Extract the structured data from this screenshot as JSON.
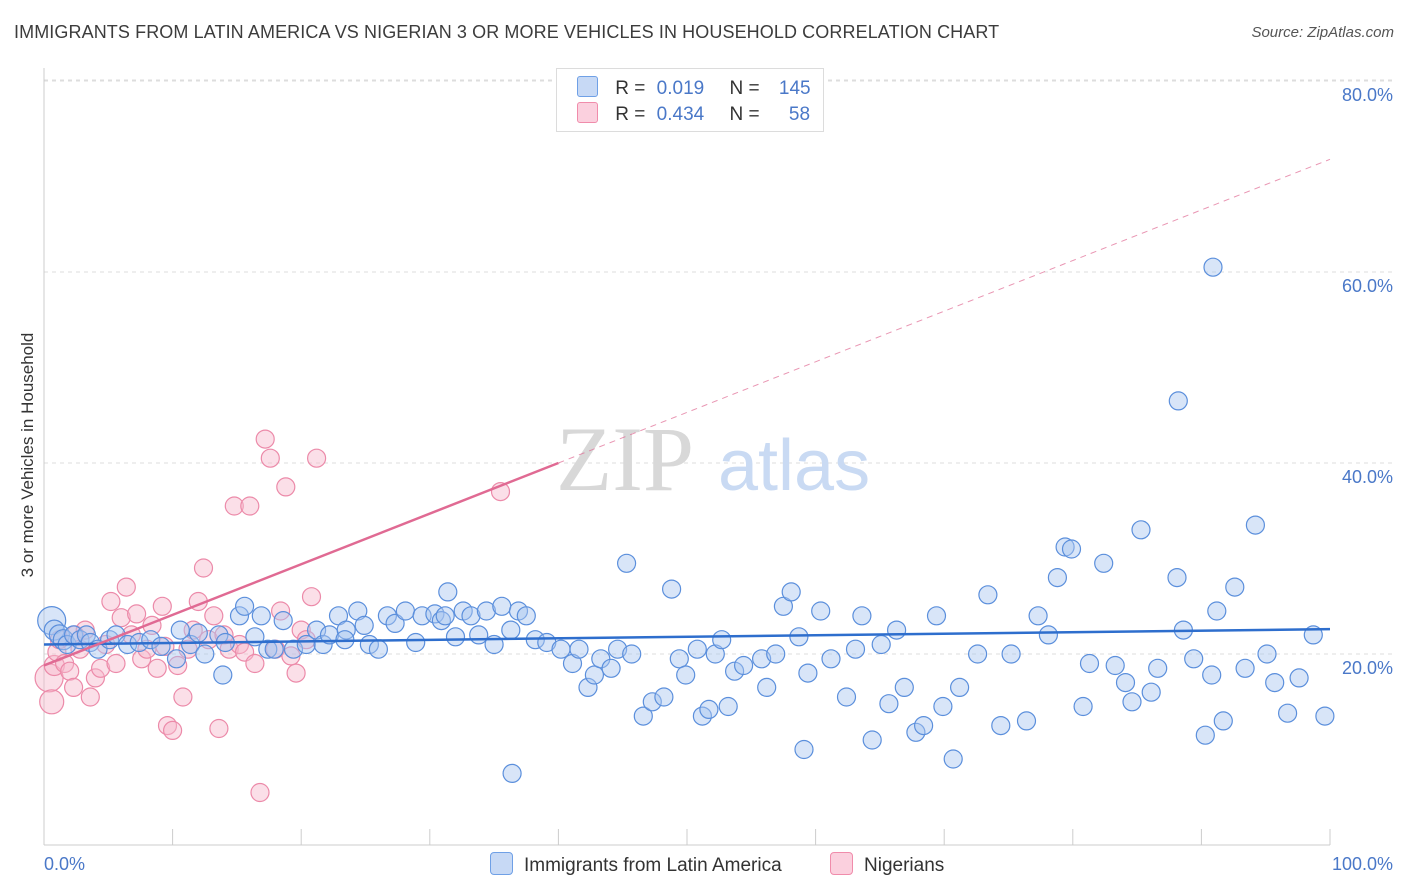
{
  "title": "IMMIGRANTS FROM LATIN AMERICA VS NIGERIAN 3 OR MORE VEHICLES IN HOUSEHOLD CORRELATION CHART",
  "source": "Source: ZipAtlas.com",
  "watermark": {
    "zip": "ZIP",
    "atlas": "atlas"
  },
  "legend": {
    "rows": [
      {
        "r_label": "R =",
        "r_value": "0.019",
        "n_label": "N =",
        "n_value": "145",
        "color": "#6fa0e6"
      },
      {
        "r_label": "R =",
        "r_value": "0.434",
        "n_label": "N =",
        "n_value": "58",
        "color": "#f08cab"
      }
    ]
  },
  "bottom_legend": {
    "series1": "Immigrants from Latin America",
    "series2": "Nigerians"
  },
  "colors": {
    "blue_fill": "#a9c6f0",
    "blue_stroke": "#5b8fdc",
    "blue_line": "#2e6ecd",
    "pink_fill": "#f6b8cc",
    "pink_stroke": "#ec8aa9",
    "pink_line": "#e06a93",
    "axis_label": "#4a78c8",
    "grid": "#dddddd"
  },
  "chart_data": {
    "type": "scatter",
    "title": "IMMIGRANTS FROM LATIN AMERICA VS NIGERIAN 3 OR MORE VEHICLES IN HOUSEHOLD CORRELATION CHART",
    "xlabel": "",
    "ylabel": "3 or more Vehicles in Household",
    "xlim": [
      0,
      100
    ],
    "ylim": [
      0,
      82
    ],
    "x_tick_labels": [
      "0.0%",
      "100.0%"
    ],
    "y_ticks": [
      20,
      40,
      60,
      80
    ],
    "y_tick_labels": [
      "20.0%",
      "40.0%",
      "60.0%",
      "80.0%"
    ],
    "series": [
      {
        "name": "Immigrants from Latin America",
        "R": 0.019,
        "N": 145,
        "trend": {
          "x": [
            0,
            100
          ],
          "y": [
            21.0,
            22.6
          ],
          "style": "solid"
        },
        "points": [
          [
            0.6,
            23.5,
            14
          ],
          [
            0.8,
            22.5,
            10
          ],
          [
            1.2,
            22,
            10
          ],
          [
            1.5,
            21.5,
            10
          ],
          [
            1.8,
            21,
            9
          ],
          [
            2.3,
            22,
            9
          ],
          [
            2.8,
            21.5,
            9
          ],
          [
            3.3,
            22,
            9
          ],
          [
            3.6,
            21.2,
            9
          ],
          [
            4.2,
            20.5,
            9
          ],
          [
            5.1,
            21.5,
            9
          ],
          [
            5.6,
            22,
            9
          ],
          [
            6.5,
            21,
            9
          ],
          [
            7.4,
            21.2,
            9
          ],
          [
            8.3,
            21.5,
            9
          ],
          [
            9.1,
            20.8,
            9
          ],
          [
            10.3,
            19.5,
            9
          ],
          [
            10.6,
            22.5,
            9
          ],
          [
            11.4,
            21,
            9
          ],
          [
            12,
            22.2,
            9
          ],
          [
            12.5,
            20,
            9
          ],
          [
            13.6,
            22,
            9
          ],
          [
            14.1,
            21.2,
            9
          ],
          [
            15.2,
            24,
            9
          ],
          [
            15.6,
            25,
            9
          ],
          [
            16.4,
            21.8,
            9
          ],
          [
            16.9,
            24,
            9
          ],
          [
            17.4,
            20.5,
            9
          ],
          [
            17.9,
            20.5,
            9
          ],
          [
            18.6,
            23.5,
            9
          ],
          [
            19.4,
            20.5,
            9
          ],
          [
            20.4,
            21,
            9
          ],
          [
            21.2,
            22.5,
            9
          ],
          [
            21.7,
            21,
            9
          ],
          [
            22.2,
            22,
            9
          ],
          [
            22.9,
            24,
            9
          ],
          [
            23.5,
            22.5,
            9
          ],
          [
            24.4,
            24.5,
            9
          ],
          [
            24.9,
            23,
            9
          ],
          [
            25.3,
            21,
            9
          ],
          [
            26,
            20.5,
            9
          ],
          [
            26.7,
            24,
            9
          ],
          [
            27.3,
            23.2,
            9
          ],
          [
            28.1,
            24.5,
            9
          ],
          [
            28.9,
            21.2,
            9
          ],
          [
            29.4,
            24,
            9
          ],
          [
            30.4,
            24.2,
            9
          ],
          [
            30.9,
            23.5,
            9
          ],
          [
            31.4,
            26.5,
            9
          ],
          [
            32,
            21.8,
            9
          ],
          [
            32.6,
            24.5,
            9
          ],
          [
            33.2,
            24,
            9
          ],
          [
            33.8,
            22,
            9
          ],
          [
            34.4,
            24.5,
            9
          ],
          [
            35,
            21,
            9
          ],
          [
            35.6,
            25,
            9
          ],
          [
            36.3,
            22.5,
            9
          ],
          [
            36.9,
            24.5,
            9
          ],
          [
            37.5,
            24,
            9
          ],
          [
            38.2,
            21.5,
            9
          ],
          [
            39.1,
            21.2,
            9
          ],
          [
            40.2,
            20.5,
            9
          ],
          [
            41.1,
            19,
            9
          ],
          [
            41.6,
            20.5,
            9
          ],
          [
            42.3,
            16.5,
            9
          ],
          [
            42.8,
            17.8,
            9
          ],
          [
            43.3,
            19.5,
            9
          ],
          [
            44.1,
            18.5,
            9
          ],
          [
            44.6,
            20.5,
            9
          ],
          [
            45.3,
            29.5,
            9
          ],
          [
            45.7,
            20,
            9
          ],
          [
            46.6,
            13.5,
            9
          ],
          [
            47.3,
            15,
            9
          ],
          [
            48.2,
            15.5,
            9
          ],
          [
            48.8,
            26.8,
            9
          ],
          [
            49.4,
            19.5,
            9
          ],
          [
            49.9,
            17.8,
            9
          ],
          [
            50.8,
            20.5,
            9
          ],
          [
            51.2,
            13.5,
            9
          ],
          [
            51.7,
            14.2,
            9
          ],
          [
            52.2,
            20,
            9
          ],
          [
            52.7,
            21.5,
            9
          ],
          [
            53.2,
            14.5,
            9
          ],
          [
            53.7,
            18.2,
            9
          ],
          [
            54.4,
            18.8,
            9
          ],
          [
            55.8,
            19.5,
            9
          ],
          [
            56.2,
            16.5,
            9
          ],
          [
            56.9,
            20,
            9
          ],
          [
            57.5,
            25,
            9
          ],
          [
            58.1,
            26.5,
            9
          ],
          [
            58.7,
            21.8,
            9
          ],
          [
            59.4,
            18,
            9
          ],
          [
            60.4,
            24.5,
            9
          ],
          [
            61.2,
            19.5,
            9
          ],
          [
            62.4,
            15.5,
            9
          ],
          [
            63.1,
            20.5,
            9
          ],
          [
            63.6,
            24,
            9
          ],
          [
            64.4,
            11,
            9
          ],
          [
            65.1,
            21,
            9
          ],
          [
            65.7,
            14.8,
            9
          ],
          [
            66.3,
            22.5,
            9
          ],
          [
            66.9,
            16.5,
            9
          ],
          [
            67.8,
            11.8,
            9
          ],
          [
            68.4,
            12.5,
            9
          ],
          [
            69.4,
            24,
            9
          ],
          [
            69.9,
            14.5,
            9
          ],
          [
            70.7,
            9,
            9
          ],
          [
            71.2,
            16.5,
            9
          ],
          [
            72.6,
            20,
            9
          ],
          [
            73.4,
            26.2,
            9
          ],
          [
            74.4,
            12.5,
            9
          ],
          [
            75.2,
            20,
            9
          ],
          [
            76.4,
            13,
            9
          ],
          [
            77.3,
            24,
            9
          ],
          [
            78.1,
            22,
            9
          ],
          [
            78.8,
            28,
            9
          ],
          [
            79.4,
            31.2,
            9
          ],
          [
            79.9,
            31,
            9
          ],
          [
            80.8,
            14.5,
            9
          ],
          [
            81.3,
            19,
            9
          ],
          [
            82.4,
            29.5,
            9
          ],
          [
            83.3,
            18.8,
            9
          ],
          [
            84.1,
            17,
            9
          ],
          [
            84.6,
            15,
            9
          ],
          [
            85.3,
            33,
            9
          ],
          [
            86.1,
            16,
            9
          ],
          [
            86.6,
            18.5,
            9
          ],
          [
            88.1,
            28,
            9
          ],
          [
            88.6,
            22.5,
            9
          ],
          [
            89.4,
            19.5,
            9
          ],
          [
            90.3,
            11.5,
            9
          ],
          [
            90.8,
            17.8,
            9
          ],
          [
            91.2,
            24.5,
            9
          ],
          [
            91.7,
            13,
            9
          ],
          [
            92.6,
            27,
            9
          ],
          [
            93.4,
            18.5,
            9
          ],
          [
            94.2,
            33.5,
            9
          ],
          [
            95.1,
            20,
            9
          ],
          [
            95.7,
            17,
            9
          ],
          [
            96.7,
            13.8,
            9
          ],
          [
            97.6,
            17.5,
            9
          ],
          [
            98.7,
            22,
            9
          ],
          [
            99.6,
            13.5,
            9
          ],
          [
            13.9,
            17.8,
            9
          ],
          [
            23.4,
            21.5,
            9
          ],
          [
            31.2,
            24,
            9
          ],
          [
            36.4,
            7.5,
            9
          ],
          [
            59.1,
            10,
            9
          ],
          [
            88.2,
            46.5,
            9
          ],
          [
            90.9,
            60.5,
            9
          ]
        ]
      },
      {
        "name": "Nigerians",
        "R": 0.434,
        "N": 58,
        "trend": {
          "x": [
            0,
            40
          ],
          "y": [
            18.8,
            40.0
          ],
          "style": "solid",
          "extension": {
            "x": [
              40,
              100
            ],
            "y": [
              40.0,
              71.8
            ],
            "style": "dashed"
          }
        },
        "points": [
          [
            0.4,
            17.5,
            14
          ],
          [
            0.6,
            15,
            12
          ],
          [
            0.8,
            18.8,
            10
          ],
          [
            1,
            20.2,
            9
          ],
          [
            1.2,
            21.5,
            9
          ],
          [
            1.6,
            19,
            9
          ],
          [
            2,
            18.2,
            9
          ],
          [
            2.4,
            22,
            9
          ],
          [
            2.8,
            20.5,
            9
          ],
          [
            3.2,
            22.5,
            9
          ],
          [
            3.6,
            15.5,
            9
          ],
          [
            4,
            17.5,
            9
          ],
          [
            4.4,
            18.5,
            9
          ],
          [
            4.8,
            21,
            9
          ],
          [
            5.2,
            25.5,
            9
          ],
          [
            5.6,
            19,
            9
          ],
          [
            6,
            23.8,
            9
          ],
          [
            6.4,
            27,
            9
          ],
          [
            6.8,
            22,
            9
          ],
          [
            7.2,
            24.2,
            9
          ],
          [
            7.6,
            19.5,
            9
          ],
          [
            8,
            20.5,
            9
          ],
          [
            8.4,
            23,
            9
          ],
          [
            8.8,
            18.5,
            9
          ],
          [
            9.2,
            25,
            9
          ],
          [
            9.6,
            12.5,
            9
          ],
          [
            10,
            12,
            9
          ],
          [
            10.4,
            18.8,
            9
          ],
          [
            10.8,
            15.5,
            9
          ],
          [
            11.2,
            20.5,
            9
          ],
          [
            11.6,
            22.5,
            9
          ],
          [
            12,
            25.5,
            9
          ],
          [
            12.4,
            29,
            9
          ],
          [
            12.8,
            21.5,
            9
          ],
          [
            13.2,
            24,
            9
          ],
          [
            13.6,
            12.2,
            9
          ],
          [
            14,
            22,
            9
          ],
          [
            14.4,
            20.5,
            9
          ],
          [
            14.8,
            35.5,
            9
          ],
          [
            15.2,
            21,
            9
          ],
          [
            15.6,
            20.2,
            9
          ],
          [
            16,
            35.5,
            9
          ],
          [
            16.4,
            19,
            9
          ],
          [
            16.8,
            5.5,
            9
          ],
          [
            17.2,
            42.5,
            9
          ],
          [
            17.6,
            40.5,
            9
          ],
          [
            18,
            20.5,
            9
          ],
          [
            18.4,
            24.5,
            9
          ],
          [
            18.8,
            37.5,
            9
          ],
          [
            19.2,
            19.8,
            9
          ],
          [
            19.6,
            18,
            9
          ],
          [
            20,
            22.5,
            9
          ],
          [
            20.4,
            21.5,
            9
          ],
          [
            20.8,
            26,
            9
          ],
          [
            21.2,
            40.5,
            9
          ],
          [
            35.5,
            37,
            9
          ],
          [
            2.3,
            16.5,
            9
          ],
          [
            9.4,
            20.8,
            9
          ]
        ]
      }
    ]
  }
}
